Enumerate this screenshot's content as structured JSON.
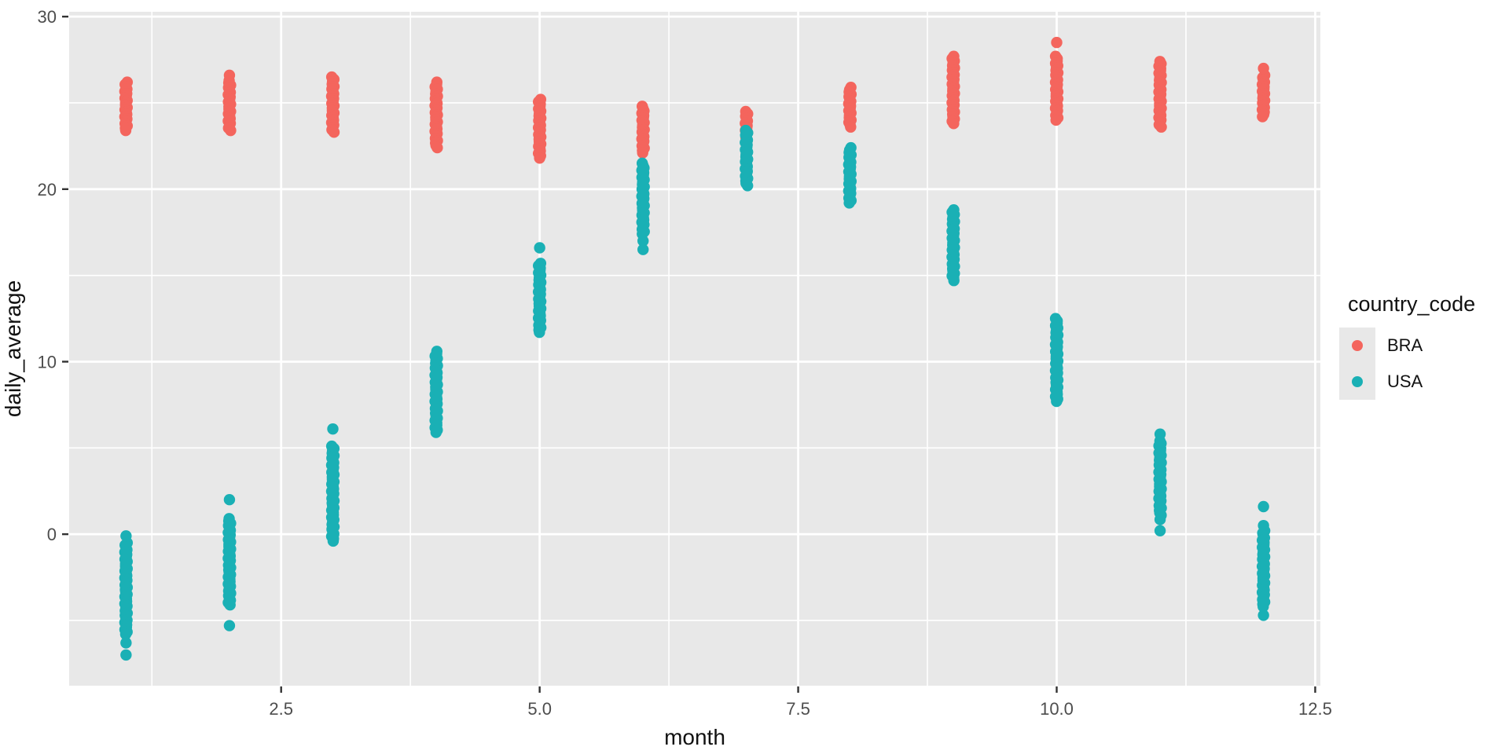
{
  "legend": {
    "title": "country_code",
    "entries": [
      {
        "label": "BRA",
        "color": "#F4655D"
      },
      {
        "label": "USA",
        "color": "#1AB0B5"
      }
    ]
  },
  "colors": {
    "panel_background": "#E8E8E8",
    "gridline": "#FFFFFF",
    "tick_mark": "#333333",
    "tick_label": "#4D4D4D",
    "axis_title": "#111111"
  },
  "chart_data": {
    "type": "scatter",
    "title": "",
    "xlabel": "month",
    "ylabel": "daily_average",
    "legend_title": "country_code",
    "legend_position": "right",
    "grid": "on",
    "x_domain": [
      0.45,
      12.55
    ],
    "y_domain": [
      -8.78,
      30.28
    ],
    "x_ticks": [
      2.5,
      5.0,
      7.5,
      10.0,
      12.5
    ],
    "x_tick_labels": [
      "2.5",
      "5.0",
      "7.5",
      "10.0",
      "12.5"
    ],
    "x_minor_ticks": [
      1.25,
      3.75,
      6.25,
      8.75,
      11.25
    ],
    "y_ticks": [
      0,
      10,
      20,
      30
    ],
    "y_tick_labels": [
      "0",
      "10",
      "20",
      "30"
    ],
    "y_minor_ticks": [
      -5,
      5,
      15,
      25
    ],
    "point_radius_px": 7.2,
    "series": [
      {
        "name": "BRA",
        "color": "#F4655D",
        "strips": [
          {
            "month": 1,
            "range": [
              23.4,
              26.2
            ],
            "dots": []
          },
          {
            "month": 2,
            "range": [
              23.4,
              26.3
            ],
            "dots": [
              26.6
            ]
          },
          {
            "month": 3,
            "range": [
              23.3,
              26.5
            ],
            "dots": []
          },
          {
            "month": 4,
            "range": [
              22.4,
              26.2
            ],
            "dots": []
          },
          {
            "month": 5,
            "range": [
              21.8,
              25.2
            ],
            "dots": []
          },
          {
            "month": 6,
            "range": [
              22.1,
              24.8
            ],
            "dots": []
          },
          {
            "month": 7,
            "range": [
              23.0,
              24.5
            ],
            "dots": []
          },
          {
            "month": 8,
            "range": [
              23.6,
              25.9
            ],
            "dots": []
          },
          {
            "month": 9,
            "range": [
              23.8,
              27.7
            ],
            "dots": []
          },
          {
            "month": 10,
            "range": [
              24.0,
              27.7
            ],
            "dots": [
              28.5
            ]
          },
          {
            "month": 11,
            "range": [
              23.6,
              27.4
            ],
            "dots": []
          },
          {
            "month": 12,
            "range": [
              24.2,
              26.6
            ],
            "dots": [
              27.0
            ]
          }
        ]
      },
      {
        "name": "USA",
        "color": "#1AB0B5",
        "strips": [
          {
            "month": 1,
            "range": [
              -5.8,
              -0.5
            ],
            "dots": [
              -0.1,
              -6.3,
              -7.0
            ]
          },
          {
            "month": 2,
            "range": [
              -4.1,
              0.9
            ],
            "dots": [
              2.0,
              -5.3
            ]
          },
          {
            "month": 3,
            "range": [
              -0.4,
              5.1
            ],
            "dots": [
              6.1
            ]
          },
          {
            "month": 4,
            "range": [
              5.9,
              10.6
            ],
            "dots": []
          },
          {
            "month": 5,
            "range": [
              11.7,
              15.7
            ],
            "dots": [
              16.6
            ]
          },
          {
            "month": 6,
            "range": [
              17.4,
              21.5
            ],
            "dots": [
              17.0,
              16.5
            ]
          },
          {
            "month": 7,
            "range": [
              20.2,
              23.4
            ],
            "dots": []
          },
          {
            "month": 8,
            "range": [
              19.2,
              22.4
            ],
            "dots": []
          },
          {
            "month": 9,
            "range": [
              14.7,
              18.8
            ],
            "dots": []
          },
          {
            "month": 10,
            "range": [
              7.7,
              12.5
            ],
            "dots": []
          },
          {
            "month": 11,
            "range": [
              1.1,
              5.4
            ],
            "dots": [
              5.8,
              0.85,
              0.2
            ]
          },
          {
            "month": 12,
            "range": [
              -4.2,
              0.2
            ],
            "dots": [
              1.6,
              0.5,
              -4.7
            ]
          }
        ]
      }
    ]
  }
}
